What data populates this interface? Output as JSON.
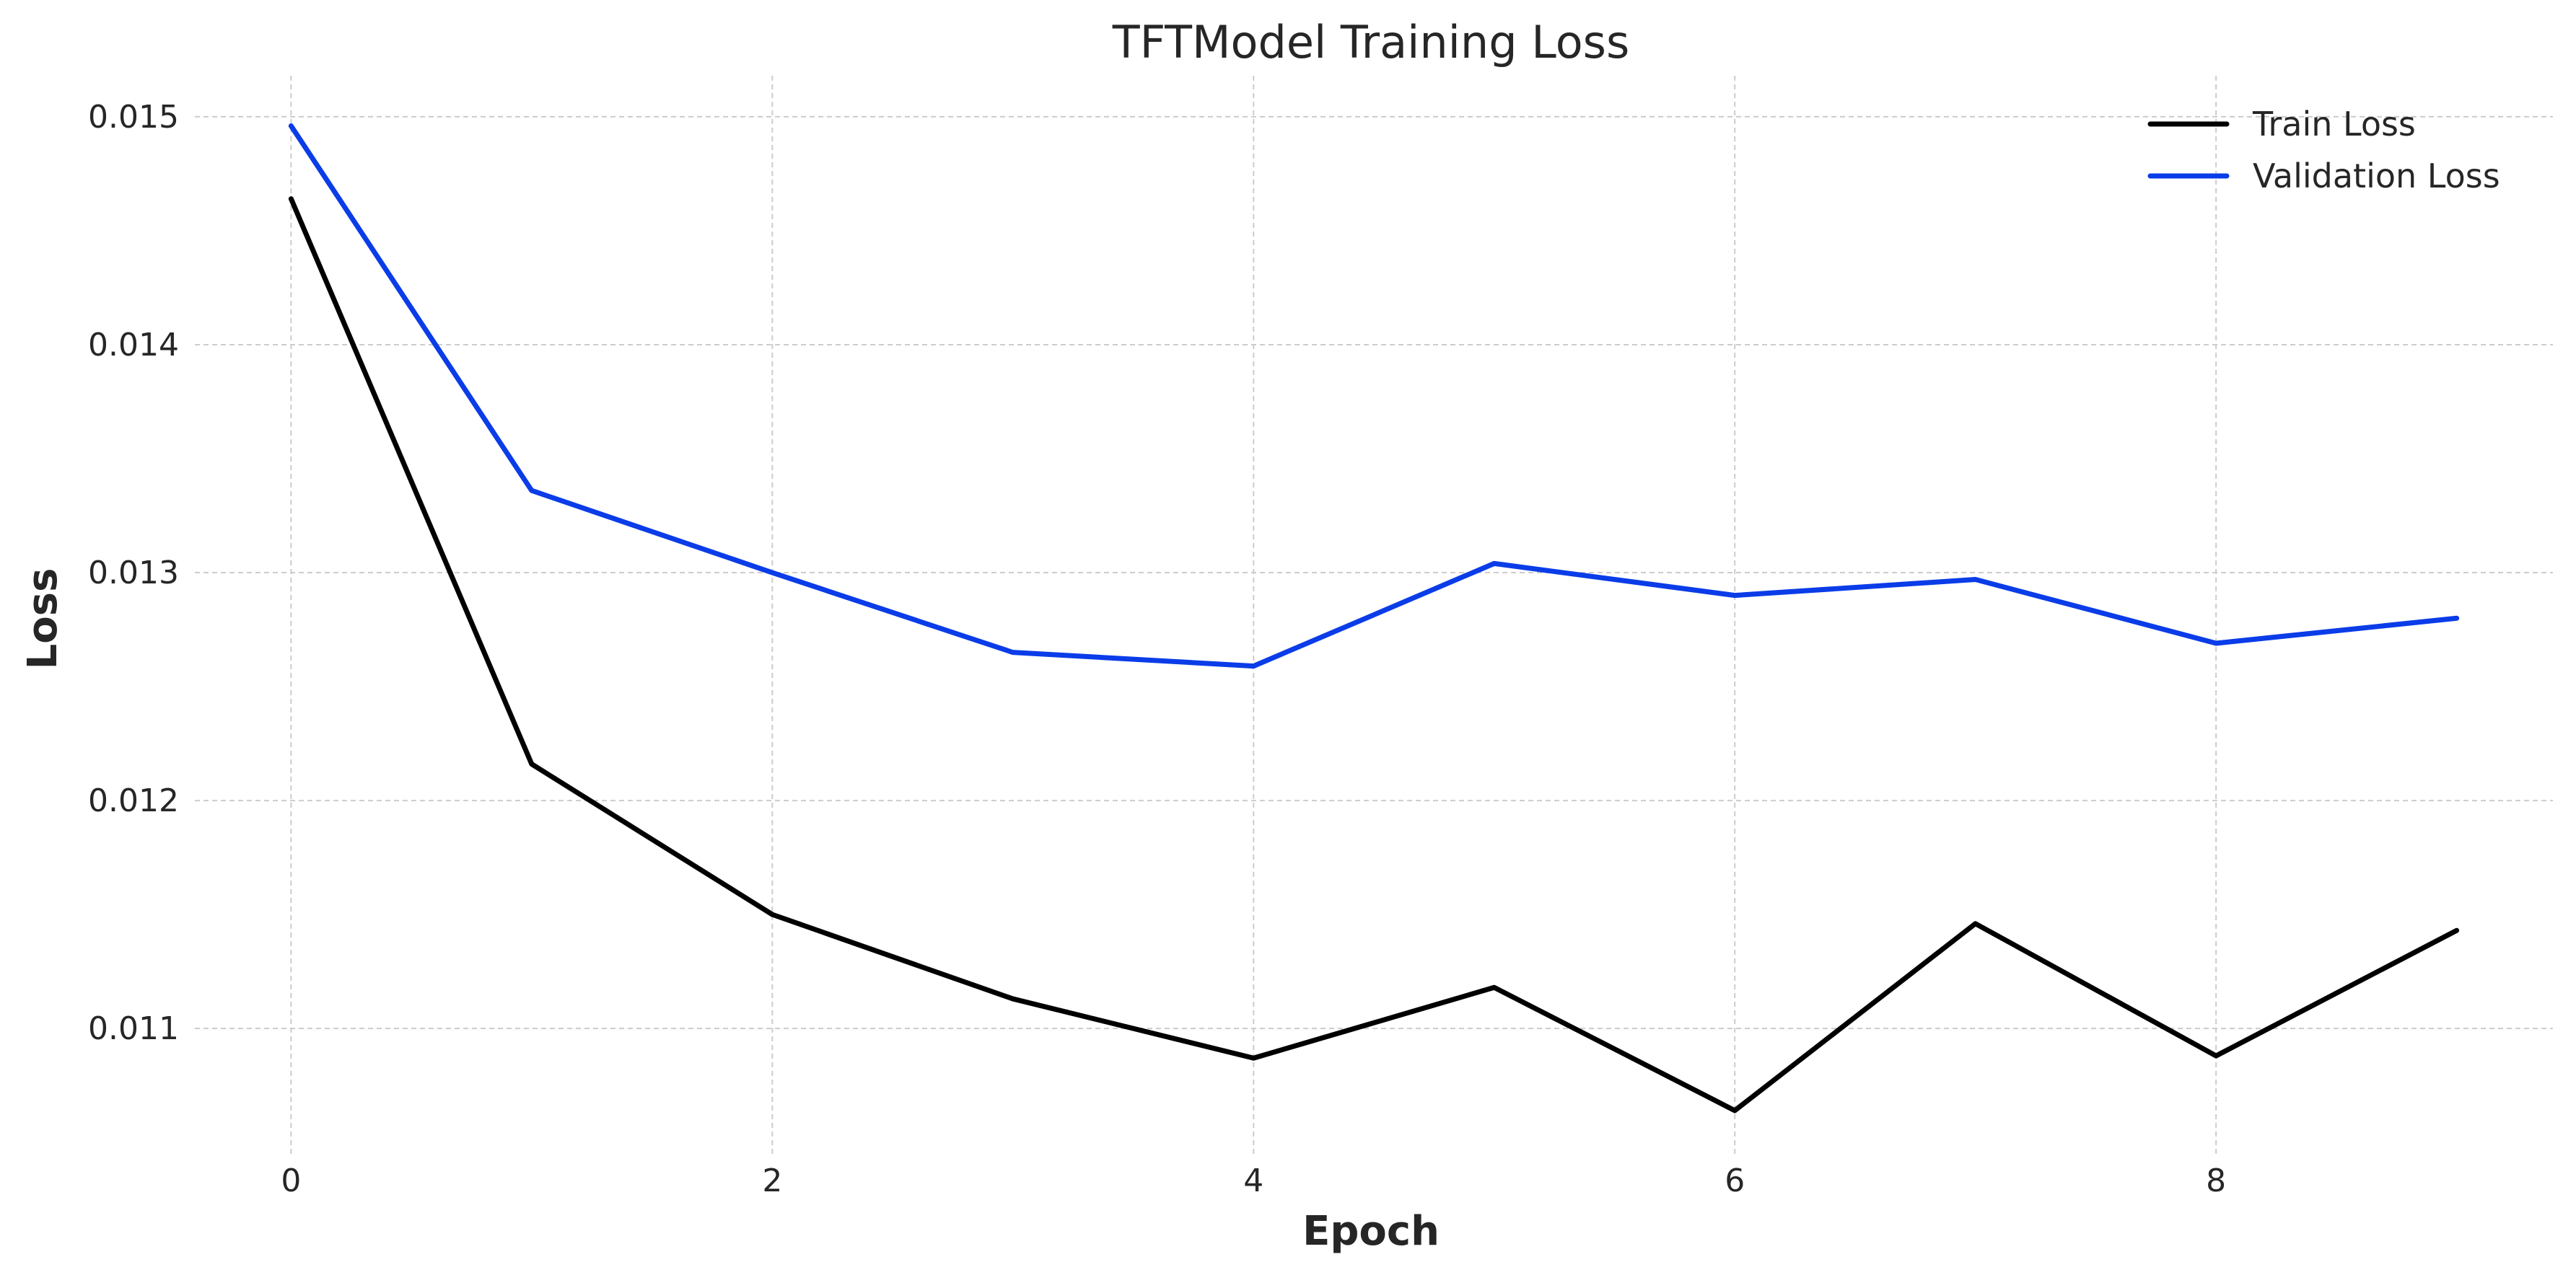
{
  "chart_data": {
    "type": "line",
    "title": "TFTModel Training Loss",
    "xlabel": "Epoch",
    "ylabel": "Loss",
    "x": [
      0,
      1,
      2,
      3,
      4,
      5,
      6,
      7,
      8,
      9
    ],
    "xlim": [
      -0.4,
      9.4
    ],
    "ylim": [
      0.01045,
      0.01518
    ],
    "x_ticks": [
      0,
      2,
      4,
      6,
      8
    ],
    "x_tick_labels": [
      "0",
      "2",
      "4",
      "6",
      "8"
    ],
    "y_ticks": [
      0.011,
      0.012,
      0.013,
      0.014,
      0.015
    ],
    "y_tick_labels": [
      "0.011",
      "0.012",
      "0.013",
      "0.014",
      "0.015"
    ],
    "grid": true,
    "legend_position": "top-right",
    "series": [
      {
        "name": "Train Loss",
        "color": "#000000",
        "values": [
          0.01464,
          0.01216,
          0.0115,
          0.01113,
          0.01087,
          0.01118,
          0.01064,
          0.01146,
          0.01088,
          0.01143
        ]
      },
      {
        "name": "Validation Loss",
        "color": "#0a3ce8",
        "values": [
          0.01496,
          0.01336,
          0.013,
          0.01265,
          0.01259,
          0.01304,
          0.0129,
          0.01297,
          0.01269,
          0.0128
        ]
      }
    ]
  }
}
